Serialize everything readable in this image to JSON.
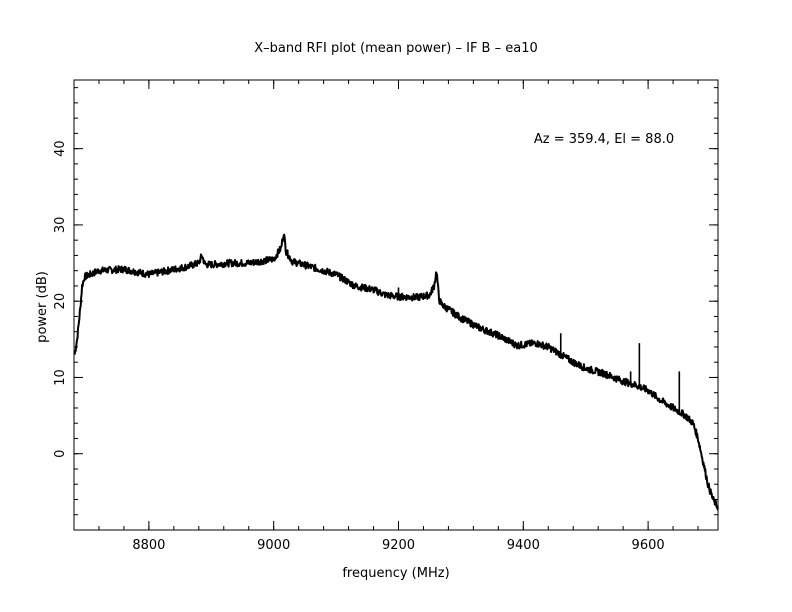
{
  "chart_data": {
    "type": "line",
    "title": "X–band RFI plot (mean power) – IF B – ea10",
    "xlabel": "frequency (MHz)",
    "ylabel": "power (dB)",
    "annotation": "Az = 359.4, El = 88.0",
    "xlim": [
      8680,
      9712
    ],
    "ylim": [
      -10,
      49
    ],
    "xticks": [
      8800,
      9000,
      9200,
      9400,
      9600
    ],
    "yticks": [
      0,
      10,
      20,
      30,
      40
    ],
    "x_minor_step": 40,
    "y_minor_step": 2,
    "grid": false,
    "line_color": "#000000",
    "series": [
      {
        "x": [
          8681,
          8685,
          8690,
          8693,
          8697,
          8700,
          8720,
          8760,
          8800,
          8830,
          8860,
          8880,
          8885,
          8890,
          8900,
          8930,
          8960,
          9000,
          9012,
          9016,
          9020,
          9030,
          9060,
          9100,
          9130,
          9160,
          9180,
          9200,
          9230,
          9250,
          9257,
          9261,
          9265,
          9270,
          9300,
          9330,
          9360,
          9390,
          9420,
          9440,
          9460,
          9480,
          9500,
          9530,
          9560,
          9580,
          9600,
          9620,
          9640,
          9660,
          9672,
          9680,
          9688,
          9696,
          9704,
          9712
        ],
        "y": [
          13,
          15,
          19,
          22,
          23.2,
          23.3,
          24,
          24.2,
          23.5,
          24,
          24.5,
          25,
          26,
          24.8,
          24.8,
          25,
          25,
          25.5,
          27,
          29,
          26.5,
          25.2,
          24.5,
          23.5,
          22,
          21.5,
          20.8,
          20.6,
          20.5,
          20.8,
          22,
          24,
          20.2,
          19.5,
          17.8,
          16.5,
          15.5,
          14.2,
          14.5,
          14,
          13,
          12,
          11.2,
          10.5,
          9.5,
          9,
          8.3,
          7,
          6,
          5,
          4,
          2,
          -1,
          -4,
          -6,
          -7
        ]
      }
    ],
    "spikes": [
      {
        "x": 9200,
        "y": 21.8
      },
      {
        "x": 9460,
        "y": 15.8
      },
      {
        "x": 9572,
        "y": 10.8
      },
      {
        "x": 9586,
        "y": 14.5
      },
      {
        "x": 9650,
        "y": 10.8
      }
    ]
  }
}
